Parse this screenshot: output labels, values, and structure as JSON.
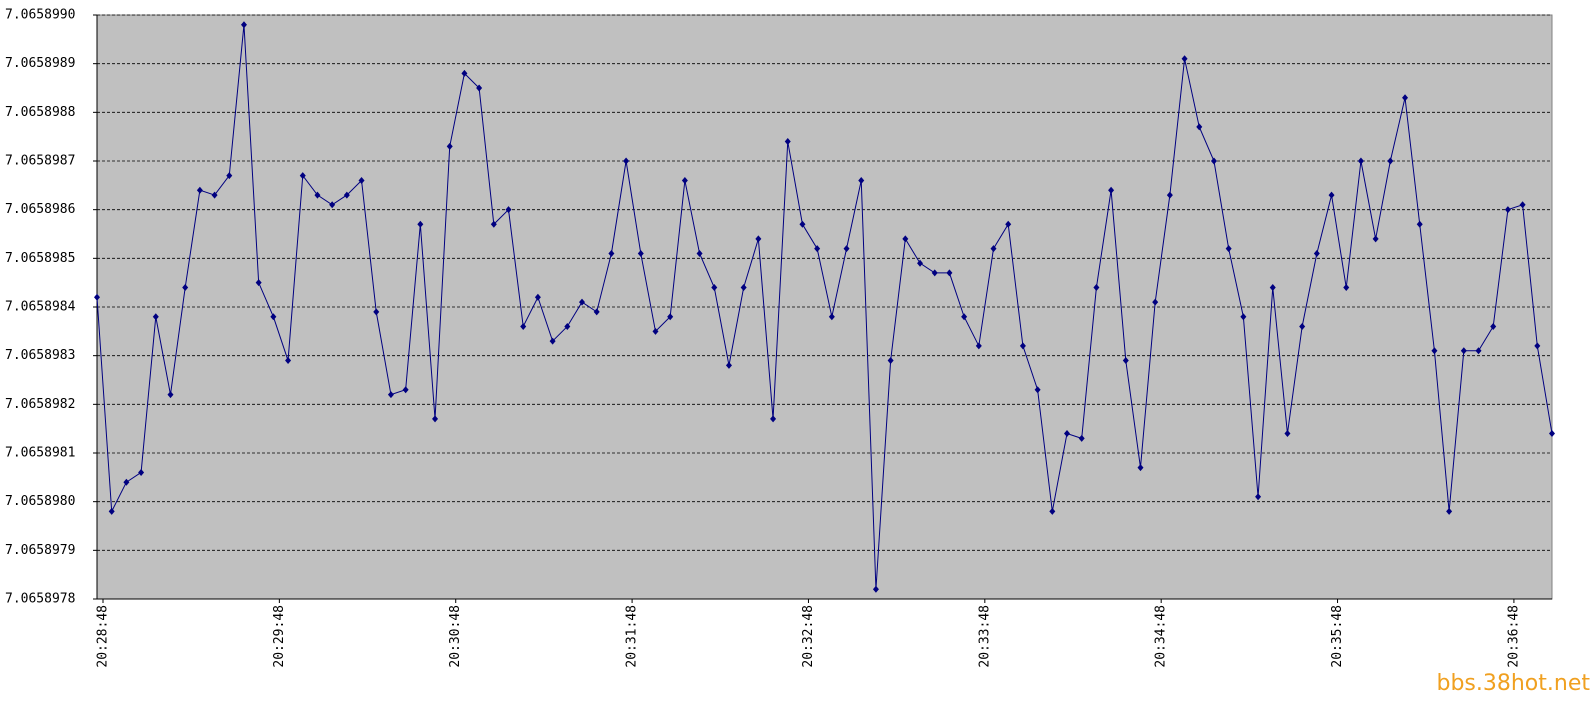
{
  "chart_data": {
    "type": "line",
    "categories": [
      "20:28:48",
      null,
      null,
      null,
      null,
      null,
      null,
      null,
      null,
      null,
      null,
      null,
      "20:29:48",
      null,
      null,
      null,
      null,
      null,
      null,
      null,
      null,
      null,
      null,
      null,
      "20:30:48",
      null,
      null,
      null,
      null,
      null,
      null,
      null,
      null,
      null,
      null,
      null,
      "20:31:48",
      null,
      null,
      null,
      null,
      null,
      null,
      null,
      null,
      null,
      null,
      null,
      "20:32:48",
      null,
      null,
      null,
      null,
      null,
      null,
      null,
      null,
      null,
      null,
      null,
      "20:33:48",
      null,
      null,
      null,
      null,
      null,
      null,
      null,
      null,
      null,
      null,
      null,
      "20:34:48",
      null,
      null,
      null,
      null,
      null,
      null,
      null,
      null,
      null,
      null,
      null,
      "20:35:48",
      null,
      null,
      null,
      null,
      null,
      null,
      null,
      null,
      null,
      null,
      null,
      "20:36:48",
      null,
      null,
      null
    ],
    "series": [
      {
        "color": "#000080",
        "values": [
          7.06589842,
          7.06589798,
          7.06589804,
          7.06589806,
          7.06589838,
          7.06589822,
          7.06589844,
          7.06589864,
          7.06589863,
          7.06589867,
          7.06589898,
          7.06589845,
          7.06589838,
          7.06589829,
          7.06589867,
          7.06589863,
          7.06589861,
          7.06589863,
          7.06589866,
          7.06589839,
          7.06589822,
          7.06589823,
          7.06589857,
          7.06589817,
          7.06589873,
          7.06589888,
          7.06589885,
          7.06589857,
          7.0658986,
          7.06589836,
          7.06589842,
          7.06589833,
          7.06589836,
          7.06589841,
          7.06589839,
          7.06589851,
          7.0658987,
          7.06589851,
          7.06589835,
          7.06589838,
          7.06589866,
          7.06589851,
          7.06589844,
          7.06589828,
          7.06589844,
          7.06589854,
          7.06589817,
          7.06589874,
          7.06589857,
          7.06589852,
          7.06589838,
          7.06589852,
          7.06589866,
          7.06589782,
          7.06589829,
          7.06589854,
          7.06589849,
          7.06589847,
          7.06589847,
          7.06589838,
          7.06589832,
          7.06589852,
          7.06589857,
          7.06589832,
          7.06589823,
          7.06589798,
          7.06589814,
          7.06589813,
          7.06589844,
          7.06589864,
          7.06589829,
          7.06589807,
          7.06589841,
          7.06589863,
          7.06589891,
          7.06589877,
          7.0658987,
          7.06589852,
          7.06589838,
          7.06589801,
          7.06589844,
          7.06589814,
          7.06589836,
          7.06589851,
          7.06589863,
          7.06589844,
          7.0658987,
          7.06589854,
          7.0658987,
          7.06589883,
          7.06589857,
          7.06589831,
          7.06589798,
          7.06589831,
          7.06589831,
          7.06589836,
          7.0658986,
          7.06589861,
          7.06589832,
          7.06589814
        ]
      }
    ],
    "ylim": [
      7.0658978,
      7.065899
    ],
    "yticks": [
      7.0658978,
      7.0658979,
      {
        "value": 7.065898,
        "label": "7.0658980"
      },
      7.0658981,
      7.0658982,
      7.0658983,
      7.0658984,
      7.0658985,
      7.0658986,
      7.0658987,
      7.0658988,
      7.0658989,
      {
        "value": 7.065899,
        "label": "7.0658990"
      }
    ],
    "grid": true,
    "background": "#c0c0c0",
    "watermark": "bbs.38hot.net"
  }
}
